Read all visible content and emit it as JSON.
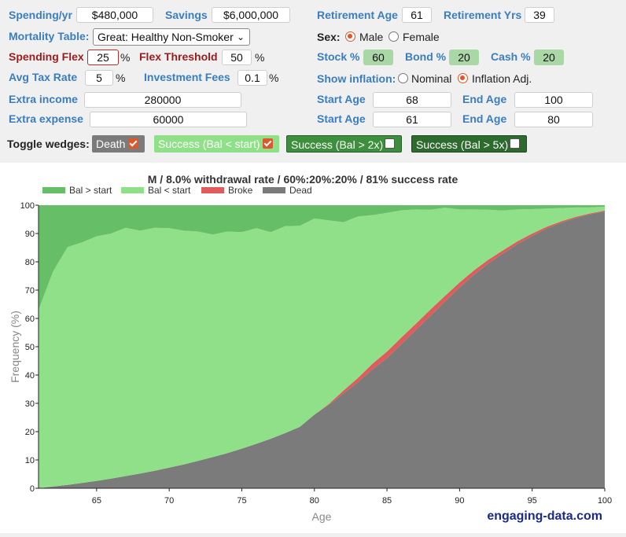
{
  "form": {
    "spending_label": "Spending/yr",
    "spending_value": "$480,000",
    "savings_label": "Savings",
    "savings_value": "$6,000,000",
    "retirement_age_label": "Retirement Age",
    "retirement_age_value": "61",
    "retirement_yrs_label": "Retirement Yrs",
    "retirement_yrs_value": "39",
    "mortality_label": "Mortality Table:",
    "mortality_value": "Great: Healthy Non-Smoker",
    "sex_label": "Sex:",
    "sex_male": "Male",
    "sex_female": "Female",
    "sex_selected": "Male",
    "flex_label": "Spending Flex",
    "flex_value": "25",
    "flex_unit": "%",
    "threshold_label": "Flex Threshold",
    "threshold_value": "50",
    "threshold_unit": "%",
    "stock_label": "Stock %",
    "stock_value": "60",
    "bond_label": "Bond %",
    "bond_value": "20",
    "cash_label": "Cash %",
    "cash_value": "20",
    "tax_label": "Avg Tax Rate",
    "tax_value": "5",
    "tax_unit": "%",
    "fees_label": "Investment Fees",
    "fees_value": "0.1",
    "fees_unit": "%",
    "inflation_label": "Show inflation:",
    "inflation_nominal": "Nominal",
    "inflation_adj": "Inflation Adj.",
    "inflation_selected": "Inflation Adj.",
    "extra_income_label": "Extra income",
    "extra_income_value": "280000",
    "extra_expense_label": "Extra expense",
    "extra_expense_value": "60000",
    "start_age_label": "Start Age",
    "end_age_label": "End Age",
    "income_start": "68",
    "income_end": "100",
    "expense_start": "61",
    "expense_end": "80"
  },
  "toggles": {
    "label": "Toggle wedges:",
    "items": [
      {
        "label": "Death",
        "checked": true,
        "color": "#7b7b7b"
      },
      {
        "label": "Success (Bal < start)",
        "checked": true,
        "color": "#90e08a"
      },
      {
        "label": "Success (Bal > 2x)",
        "checked": false,
        "color": "#3d8f3d"
      },
      {
        "label": "Success (Bal > 5x)",
        "checked": false,
        "color": "#2d6a2d"
      }
    ]
  },
  "watermark": "engaging-data.com",
  "chart_data": {
    "type": "area",
    "title": "M / 8.0% withdrawal rate / 60%:20%:20% / 81% success rate",
    "xlabel": "Age",
    "ylabel": "Frequency (%)",
    "xlim": [
      61,
      100
    ],
    "ylim": [
      0,
      100
    ],
    "x_ticks": [
      65,
      70,
      75,
      80,
      85,
      90,
      95,
      100
    ],
    "y_ticks": [
      0,
      10,
      20,
      30,
      40,
      50,
      60,
      70,
      80,
      90,
      100
    ],
    "legend_position": "top-left",
    "stacked": true,
    "x": [
      61,
      62,
      63,
      64,
      65,
      66,
      67,
      68,
      69,
      70,
      71,
      72,
      73,
      74,
      75,
      76,
      77,
      78,
      79,
      80,
      81,
      82,
      83,
      84,
      85,
      86,
      87,
      88,
      89,
      90,
      91,
      92,
      93,
      94,
      95,
      96,
      97,
      98,
      99,
      100
    ],
    "series": [
      {
        "name": "Dead",
        "color": "#7b7b7b",
        "values": [
          0,
          0.6,
          1.2,
          1.9,
          2.6,
          3.4,
          4.3,
          5.2,
          6.2,
          7.3,
          8.4,
          9.7,
          11.0,
          12.4,
          14.0,
          15.7,
          17.5,
          19.5,
          21.7,
          26.0,
          29.5,
          33.5,
          37.5,
          42.0,
          46.0,
          51.0,
          56.0,
          61.0,
          66.0,
          71.0,
          75.5,
          79.5,
          83.0,
          86.3,
          89.2,
          91.8,
          93.8,
          95.5,
          96.8,
          97.8
        ]
      },
      {
        "name": "Broke",
        "color": "#e05c5c",
        "values": [
          0,
          0,
          0,
          0,
          0,
          0,
          0,
          0,
          0,
          0,
          0,
          0,
          0,
          0,
          0,
          0,
          0,
          0,
          0,
          0,
          0.3,
          1.0,
          1.5,
          2.0,
          2.3,
          2.3,
          2.2,
          2.2,
          2.0,
          1.7,
          1.5,
          1.3,
          1.1,
          1.0,
          0.8,
          0.6,
          0.5,
          0.4,
          0.3,
          0.3
        ]
      },
      {
        "name": "Bal < start",
        "color": "#90e08a",
        "values": [
          63,
          76,
          84,
          85,
          86.4,
          86.6,
          87.7,
          85.8,
          85.8,
          84.6,
          82.6,
          81.0,
          78.6,
          78.3,
          76.5,
          76.2,
          73.0,
          73.1,
          71.0,
          69.3,
          64.8,
          59.5,
          57.0,
          52.5,
          49.0,
          44.9,
          40.3,
          35.2,
          31.1,
          25.8,
          21.5,
          17.6,
          14.0,
          11.2,
          8.6,
          6.4,
          4.7,
          3.3,
          2.1,
          1.4
        ]
      },
      {
        "name": "Bal > start",
        "color": "#66bf66",
        "values": [
          37,
          23.4,
          14.8,
          13.1,
          11.0,
          10.0,
          8.0,
          9.0,
          8.0,
          8.1,
          9.0,
          9.3,
          10.4,
          9.3,
          9.5,
          8.1,
          9.5,
          7.4,
          7.3,
          4.7,
          5.4,
          6.0,
          4.0,
          3.5,
          2.7,
          1.8,
          1.5,
          1.6,
          0.9,
          1.5,
          1.5,
          1.6,
          1.9,
          1.5,
          1.4,
          1.2,
          1.0,
          0.8,
          0.8,
          0.5
        ]
      }
    ]
  }
}
